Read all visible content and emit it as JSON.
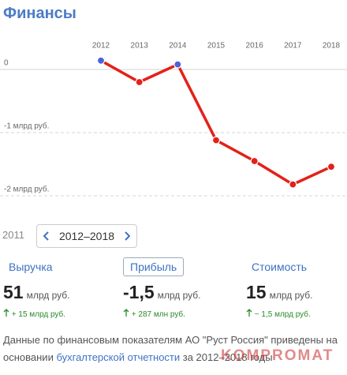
{
  "header": {
    "title": "Финансы"
  },
  "chart_data": {
    "type": "line",
    "categories": [
      "2012",
      "2013",
      "2014",
      "2015",
      "2016",
      "2017",
      "2018"
    ],
    "values": [
      0.14,
      -0.2,
      0.08,
      -1.12,
      -1.45,
      -1.82,
      -1.54
    ],
    "color": "#e32119",
    "point_colors": [
      "#4a63d8",
      "#e32119",
      "#4a63d8",
      "#e32119",
      "#e32119",
      "#e32119",
      "#e32119"
    ],
    "ylim": [
      -2.1,
      0.25
    ],
    "yticks": [
      0,
      {
        "value": -1,
        "label": "-1 млрд руб."
      },
      {
        "value": -2,
        "label": "-2 млрд руб."
      }
    ],
    "grid": true
  },
  "period": {
    "previous": "2011",
    "range": "2012–2018"
  },
  "selected_metric": 1,
  "metrics": [
    {
      "label": "Выручка",
      "value": "51",
      "unit": "млрд руб.",
      "change": "+ 15 млрд руб."
    },
    {
      "label": "Прибыль",
      "value": "-1,5",
      "unit": "млрд руб.",
      "change": "+ 287 млн руб."
    },
    {
      "label": "Стоимость",
      "value": "15",
      "unit": "млрд руб.",
      "change": "− 1,5 млрд руб."
    }
  ],
  "footnote": {
    "before": "Данные по финансовым показателям АО \"Руст Россия\" приведены на основании ",
    "link": "бухгалтерской отчетности",
    "after": " за 2012–2018 годы"
  },
  "watermark": "KOMPROMAT"
}
